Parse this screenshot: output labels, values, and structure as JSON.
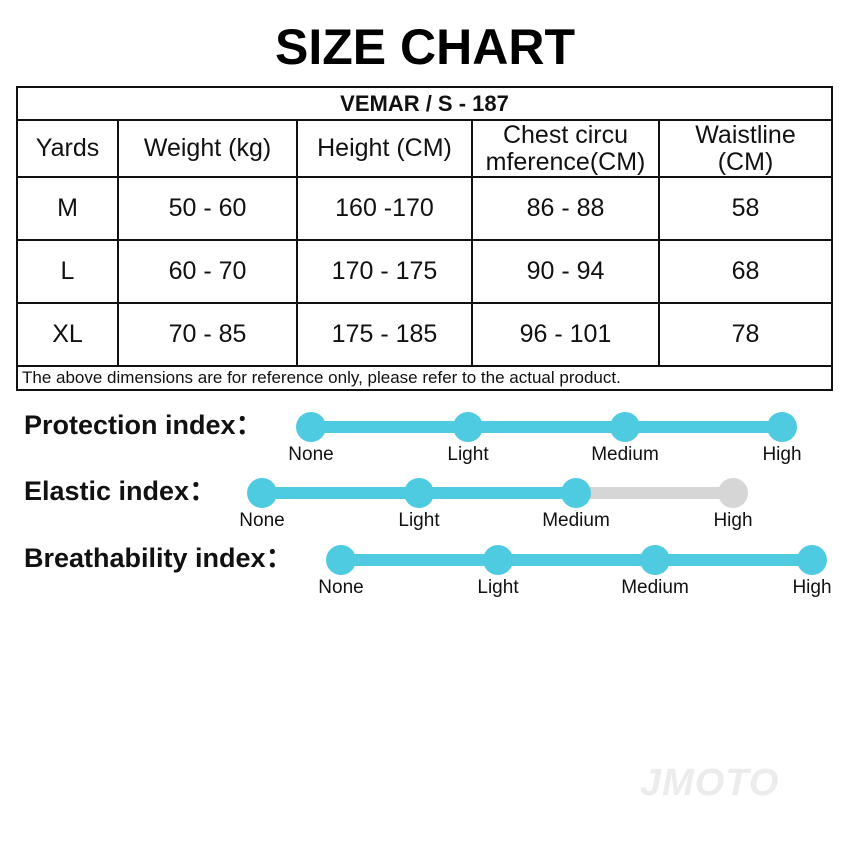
{
  "header": {
    "title": "SIZE CHART"
  },
  "table": {
    "caption": "VEMAR / S - 187",
    "columns": [
      "Yards",
      "Weight (kg)",
      "Height (CM)",
      "Chest circu\nmference(CM)",
      "Waistline\n(CM)"
    ],
    "rows": [
      [
        "M",
        "50 - 60",
        "160 -170",
        "86 - 88",
        "58"
      ],
      [
        "L",
        "60 - 70",
        "170 - 175",
        "90 - 94",
        "68"
      ],
      [
        "XL",
        "70 - 85",
        "175 - 185",
        "96 - 101",
        "78"
      ]
    ],
    "note": "The above dimensions are for reference only, please refer to the actual product."
  },
  "indices": [
    {
      "label": "Protection index：",
      "levels": [
        "None",
        "Light",
        "Medium",
        "High"
      ],
      "filled": 4
    },
    {
      "label": "Elastic index：",
      "levels": [
        "None",
        "Light",
        "Medium",
        "High"
      ],
      "filled": 3
    },
    {
      "label": "Breathability index：",
      "levels": [
        "None",
        "Light",
        "Medium",
        "High"
      ],
      "filled": 4
    }
  ],
  "active_color": "#4ecbe0",
  "inactive_color": "#d6d6d6",
  "logo": "JMOTO"
}
